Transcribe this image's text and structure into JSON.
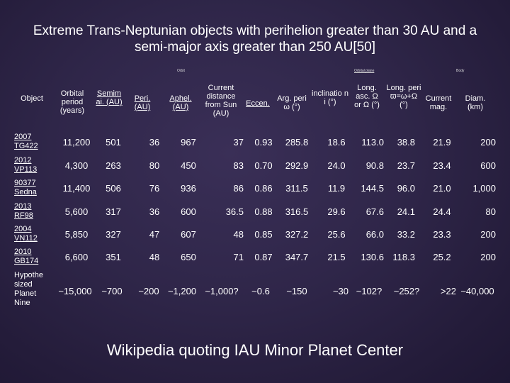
{
  "title": "Extreme Trans-Neptunian objects with perihelion greater than 30 AU and a semi-major axis greater than 250 AU[50]",
  "tiny_labels": {
    "orbit": "Orbit",
    "orbital_plane": "Orbital plane",
    "body": "Body"
  },
  "headers": {
    "object": "Object",
    "period": "Orbital period (years)",
    "semimajor": "Semim ai. (AU)",
    "peri": "Peri. (AU)",
    "aphel": "Aphel. (AU)",
    "distance": "Current distance from Sun (AU)",
    "eccen": "Eccen.",
    "argperi": "Arg. peri ω (°)",
    "inclination": "inclinatio n i (°)",
    "longasc": "Long. asc. Ω or Ω (°)",
    "longperi": "Long. peri ϖ=ω+Ω (°)",
    "mag": "Current mag.",
    "diam": "Diam. (km)"
  },
  "rows": [
    {
      "name": "2007 TG422",
      "period": "11,200",
      "semimajor": "501",
      "peri": "36",
      "aphel": "967",
      "distance": "37",
      "eccen": "0.93",
      "argperi": "285.8",
      "incl": "18.6",
      "longasc": "113.0",
      "longperi": "38.8",
      "mag": "21.9",
      "diam": "200"
    },
    {
      "name": "2012 VP113",
      "period": "4,300",
      "semimajor": "263",
      "peri": "80",
      "aphel": "450",
      "distance": "83",
      "eccen": "0.70",
      "argperi": "292.9",
      "incl": "24.0",
      "longasc": "90.8",
      "longperi": "23.7",
      "mag": "23.4",
      "diam": "600"
    },
    {
      "name": "90377 Sedna",
      "period": "11,400",
      "semimajor": "506",
      "peri": "76",
      "aphel": "936",
      "distance": "86",
      "eccen": "0.86",
      "argperi": "311.5",
      "incl": "11.9",
      "longasc": "144.5",
      "longperi": "96.0",
      "mag": "21.0",
      "diam": "1,000"
    },
    {
      "name": "2013 RF98",
      "period": "5,600",
      "semimajor": "317",
      "peri": "36",
      "aphel": "600",
      "distance": "36.5",
      "eccen": "0.88",
      "argperi": "316.5",
      "incl": "29.6",
      "longasc": "67.6",
      "longperi": "24.1",
      "mag": "24.4",
      "diam": "80"
    },
    {
      "name": "2004 VN112",
      "period": "5,850",
      "semimajor": "327",
      "peri": "47",
      "aphel": "607",
      "distance": "48",
      "eccen": "0.85",
      "argperi": "327.2",
      "incl": "25.6",
      "longasc": "66.0",
      "longperi": "33.2",
      "mag": "23.3",
      "diam": "200"
    },
    {
      "name": "2010 GB174",
      "period": "6,600",
      "semimajor": "351",
      "peri": "48",
      "aphel": "650",
      "distance": "71",
      "eccen": "0.87",
      "argperi": "347.7",
      "incl": "21.5",
      "longasc": "130.6",
      "longperi": "118.3",
      "mag": "25.2",
      "diam": "200"
    },
    {
      "name": "Hypothe sized Planet Nine",
      "period": "~15,000",
      "semimajor": "~700",
      "peri": "~200",
      "aphel": "~1,200",
      "distance": "~1,000?",
      "eccen": "~0.6",
      "argperi": "~150",
      "incl": "~30",
      "longasc": "~102?",
      "longperi": "~252?",
      "mag": ">22",
      "diam": "~40,000"
    }
  ],
  "footer": "Wikipedia quoting IAU Minor Planet Center"
}
